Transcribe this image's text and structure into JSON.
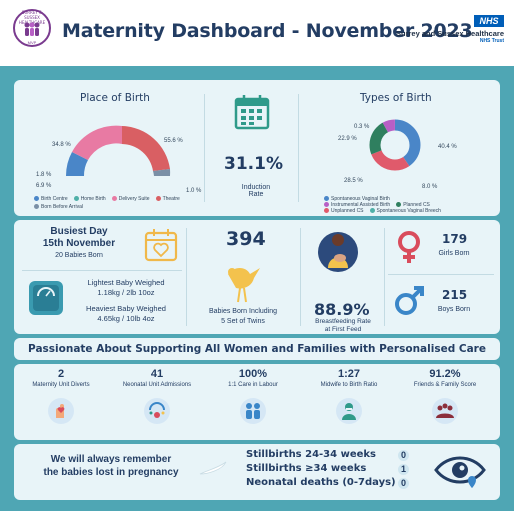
{
  "header": {
    "title": "Maternity Dashboard - November 2023",
    "logo_top": "SURREY & SUSSEX HEALTHCARE",
    "logo_bottom": "MVP",
    "nhs": "NHS",
    "trust": "Surrey and Sussex Healthcare",
    "trust_sub": "NHS Trust"
  },
  "place_of_birth": {
    "title": "Place of Birth",
    "labels": [
      "34.8 %",
      "55.6 %",
      "1.8 %",
      "6.9 %",
      "1.0 %"
    ],
    "legend": [
      "Birth Centre",
      "Home Birth",
      "Delivery Suite",
      "Theatre",
      "Born Before Arrival"
    ],
    "colors": [
      "#4a86c8",
      "#4fb0a8",
      "#e87aa3",
      "#d95f63",
      "#7a8fa6"
    ]
  },
  "induction": {
    "value": "31.1%",
    "label": "Induction Rate"
  },
  "types_of_birth": {
    "title": "Types of Birth",
    "labels": [
      "0.3 %",
      "22.9 %",
      "40.4 %",
      "28.5 %",
      "8.0 %"
    ],
    "legend": [
      "Spontaneous Vaginal Birth",
      "Instrumental Assisted Birth",
      "Planned CS",
      "Unplanned CS",
      "Spontaneous Vaginal Breech"
    ],
    "colors": [
      "#4a86c8",
      "#b85fc5",
      "#2f7f5f",
      "#e05a6b",
      "#4fb0a8"
    ]
  },
  "busiest_day": {
    "title": "Busiest Day",
    "date": "15th November",
    "babies": "20 Babies Born"
  },
  "weights": {
    "lightest_title": "Lightest Baby Weighed",
    "lightest_value": "1.18kg / 2lb 10oz",
    "heaviest_title": "Heaviest Baby Weighed",
    "heaviest_value": "4.65kg / 10lb 4oz"
  },
  "babies_born": {
    "value": "394",
    "label1": "Babies Born Including",
    "label2": "5 Set of Twins"
  },
  "breastfeeding": {
    "value": "88.9%",
    "label1": "Breastfeeding Rate",
    "label2": "at First Feed"
  },
  "gender": {
    "girls_value": "179",
    "girls_label": "Girls Born",
    "boys_value": "215",
    "boys_label": "Boys Born"
  },
  "slogan": "Passionate About Supporting All Women and Families with Personalised Care",
  "kpis": [
    {
      "value": "2",
      "label": "Maternity Unit Diverts"
    },
    {
      "value": "41",
      "label": "Neonatal Unit Admissions"
    },
    {
      "value": "100%",
      "label": "1:1 Care in Labour"
    },
    {
      "value": "1:27",
      "label": "Midwife to Birth Ratio"
    },
    {
      "value": "91.2%",
      "label": "Friends & Family Score"
    }
  ],
  "memorial": {
    "line1": "We will always remember",
    "line2": "the babies lost in pregnancy"
  },
  "stillbirths": [
    {
      "label": "Stillbirths 24-34 weeks",
      "value": "0"
    },
    {
      "label": "Stillbirths ≥34 weeks",
      "value": "1"
    },
    {
      "label": "Neonatal deaths (0-7days)",
      "value": "0"
    }
  ]
}
